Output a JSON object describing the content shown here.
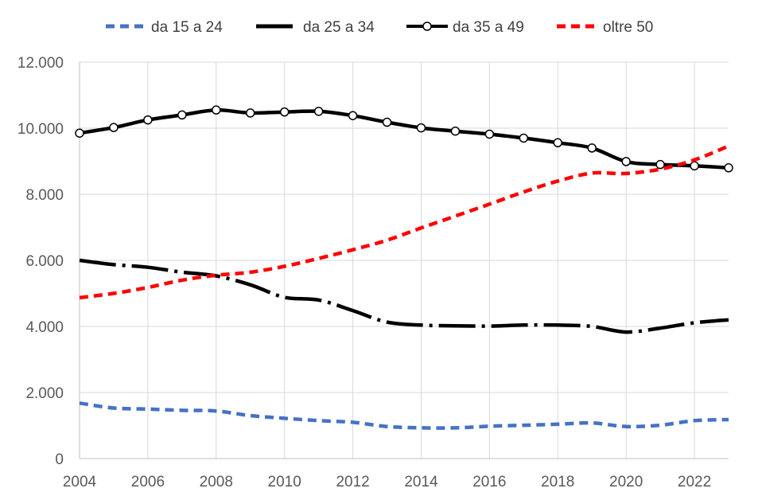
{
  "chart_data": {
    "type": "line",
    "title": "",
    "xlabel": "",
    "ylabel": "",
    "x": [
      2004,
      2005,
      2006,
      2007,
      2008,
      2009,
      2010,
      2011,
      2012,
      2013,
      2014,
      2015,
      2016,
      2017,
      2018,
      2019,
      2020,
      2021,
      2022,
      2023
    ],
    "xlim": [
      2004,
      2023
    ],
    "ylim": [
      0,
      12000
    ],
    "x_ticks": [
      "2004",
      "2006",
      "2008",
      "2010",
      "2012",
      "2014",
      "2016",
      "2018",
      "2020",
      "2022"
    ],
    "y_ticks": [
      "0",
      "2.000",
      "4.000",
      "6.000",
      "8.000",
      "10.000",
      "12.000"
    ],
    "grid": "horizontal",
    "legend_position": "top",
    "series": [
      {
        "name": "da 15 a 24",
        "color": "#4472c4",
        "style": "dashed",
        "values": [
          1680,
          1530,
          1500,
          1460,
          1440,
          1300,
          1220,
          1150,
          1100,
          970,
          930,
          930,
          980,
          1010,
          1040,
          1080,
          970,
          1010,
          1150,
          1180
        ]
      },
      {
        "name": "da 25 a 34",
        "color": "#000000",
        "style": "dash-dot",
        "values": [
          6000,
          5870,
          5790,
          5640,
          5530,
          5260,
          4880,
          4800,
          4480,
          4130,
          4040,
          4020,
          4010,
          4040,
          4040,
          4000,
          3830,
          3950,
          4110,
          4200
        ]
      },
      {
        "name": "da 35 a 49",
        "color": "#000000",
        "style": "solid-markers",
        "values": [
          9850,
          10020,
          10250,
          10400,
          10550,
          10460,
          10490,
          10510,
          10380,
          10180,
          10010,
          9910,
          9820,
          9700,
          9560,
          9400,
          8990,
          8900,
          8860,
          8800
        ]
      },
      {
        "name": "oltre 50",
        "color": "#ff0000",
        "style": "dashed",
        "values": [
          4870,
          5000,
          5180,
          5400,
          5550,
          5640,
          5820,
          6060,
          6320,
          6610,
          6980,
          7340,
          7700,
          8070,
          8400,
          8640,
          8630,
          8760,
          9040,
          9460
        ]
      }
    ]
  }
}
